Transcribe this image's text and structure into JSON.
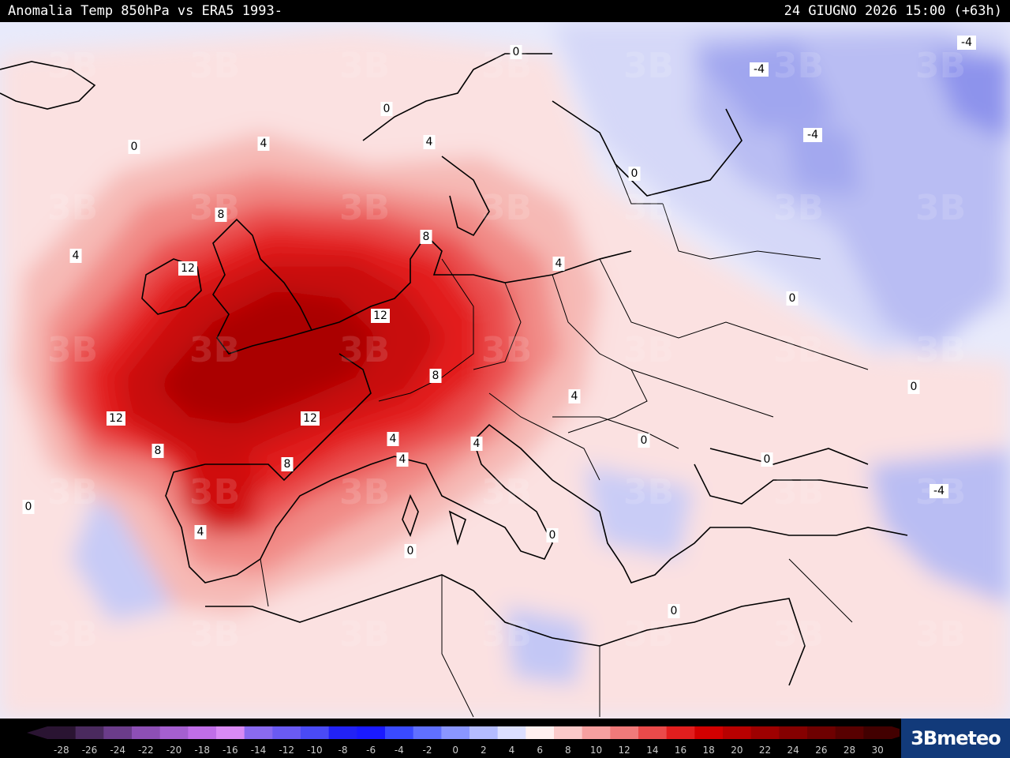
{
  "header": {
    "title": "Anomalia Temp 850hPa vs ERA5 1993-",
    "datetime": "24 GIUGNO 2026 15:00 (+63h)"
  },
  "brand": {
    "logo_text": "3Bmeteo"
  },
  "colors": {
    "ocean_base": "#e6e8fb",
    "neutral_pos": "#fadfdf",
    "warm_1": "#f6b9b5",
    "warm_2": "#f18a86",
    "warm_3": "#ea4f4f",
    "warm_4": "#e21e1e",
    "warm_5": "#c80a0a",
    "warm_6": "#aa0000",
    "cool_1": "#c7cbf6",
    "cool_2": "#a5aaf0",
    "cool_3": "#7f84ea",
    "coastline": "#000000"
  },
  "legend": {
    "labels": [
      "-28",
      "-26",
      "-24",
      "-22",
      "-20",
      "-18",
      "-16",
      "-14",
      "-12",
      "-10",
      "-8",
      "-6",
      "-4",
      "-2",
      "0",
      "2",
      "4",
      "6",
      "8",
      "10",
      "12",
      "14",
      "16",
      "18",
      "20",
      "22",
      "24",
      "26",
      "28",
      "30"
    ],
    "colors": [
      "#2a1432",
      "#4a2a5e",
      "#6b3c8a",
      "#8d4fb5",
      "#a55fd0",
      "#c06ee8",
      "#d98af5",
      "#8a6af0",
      "#6a5af2",
      "#4a4af5",
      "#2222f5",
      "#1a1aff",
      "#3a4aff",
      "#6070ff",
      "#8a96ff",
      "#b4bcff",
      "#dcdfff",
      "#fff0f0",
      "#fbcaca",
      "#f6a0a0",
      "#f07a7a",
      "#ea4a4a",
      "#e21e1e",
      "#d20000",
      "#b80000",
      "#9e0000",
      "#850000",
      "#6e0000",
      "#580000",
      "#420000"
    ]
  },
  "contour_labels": [
    {
      "text": "0"
    },
    {
      "text": "0"
    },
    {
      "text": "0"
    },
    {
      "text": "0"
    },
    {
      "text": "0"
    },
    {
      "text": "0"
    },
    {
      "text": "0"
    },
    {
      "text": "0"
    },
    {
      "text": "0"
    },
    {
      "text": "0"
    },
    {
      "text": "0"
    },
    {
      "text": "0"
    },
    {
      "text": "4"
    },
    {
      "text": "4"
    },
    {
      "text": "4"
    },
    {
      "text": "4"
    },
    {
      "text": "4"
    },
    {
      "text": "4"
    },
    {
      "text": "4"
    },
    {
      "text": "4"
    },
    {
      "text": "4"
    },
    {
      "text": "8"
    },
    {
      "text": "8"
    },
    {
      "text": "8"
    },
    {
      "text": "8"
    },
    {
      "text": "8"
    },
    {
      "text": "12"
    },
    {
      "text": "12"
    },
    {
      "text": "12"
    },
    {
      "text": "12"
    },
    {
      "text": "-4"
    },
    {
      "text": "-4"
    },
    {
      "text": "-4"
    },
    {
      "text": "-4"
    }
  ],
  "watermark": {
    "text": "3B"
  }
}
